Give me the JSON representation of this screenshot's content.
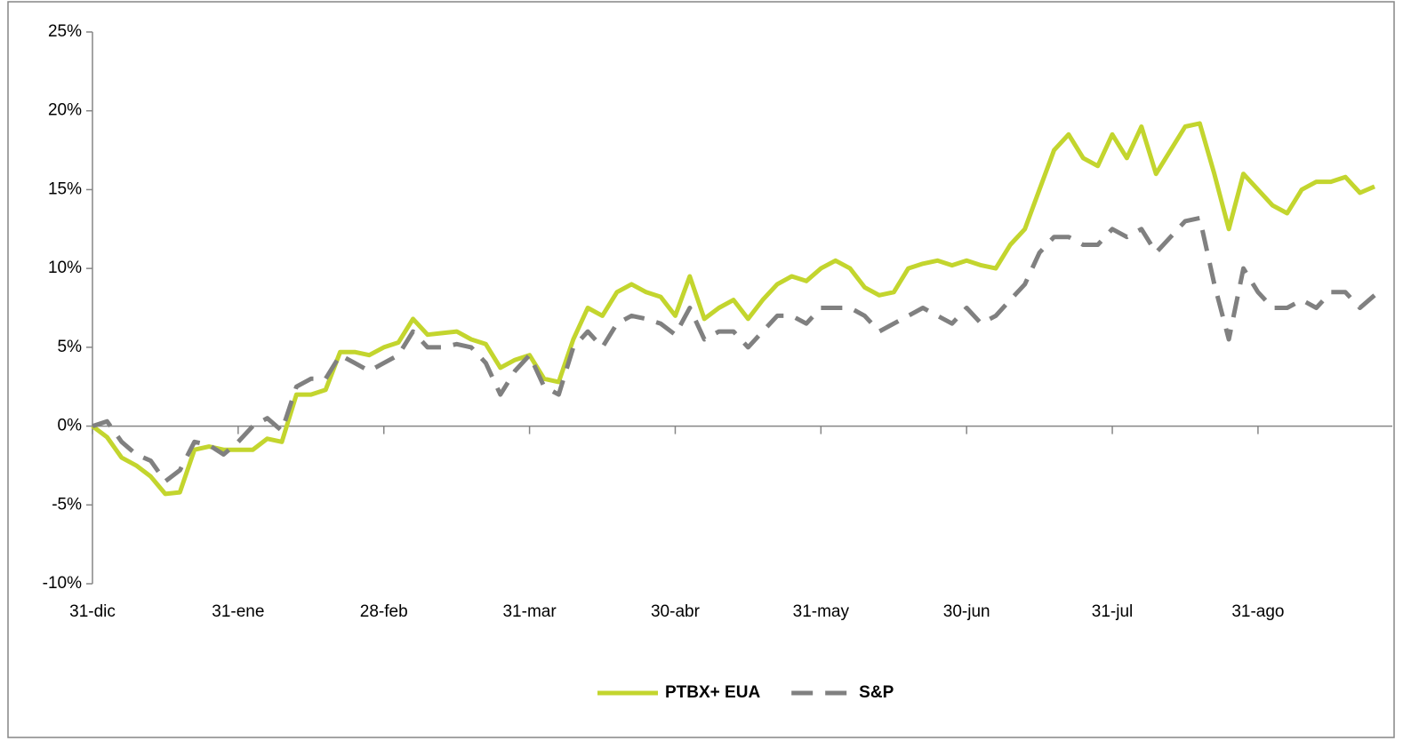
{
  "chart_data": {
    "type": "line",
    "categories": [
      "31-dic",
      null,
      null,
      null,
      null,
      null,
      null,
      null,
      null,
      null,
      "31-ene",
      null,
      null,
      null,
      null,
      null,
      null,
      null,
      null,
      null,
      "28-feb",
      null,
      null,
      null,
      null,
      null,
      null,
      null,
      null,
      null,
      "31-mar",
      null,
      null,
      null,
      null,
      null,
      null,
      null,
      null,
      null,
      "30-abr",
      null,
      null,
      null,
      null,
      null,
      null,
      null,
      null,
      null,
      "31-may",
      null,
      null,
      null,
      null,
      null,
      null,
      null,
      null,
      null,
      "30-jun",
      null,
      null,
      null,
      null,
      null,
      null,
      null,
      null,
      null,
      "31-jul",
      null,
      null,
      null,
      null,
      null,
      null,
      null,
      null,
      null,
      "31-ago",
      null,
      null,
      null,
      null,
      null,
      null,
      null,
      null
    ],
    "series": [
      {
        "name": "PTBX+ EUA",
        "color": "#c3d52e",
        "dashed": false,
        "values": [
          0,
          -0.7,
          -2.0,
          -2.5,
          -3.2,
          -4.3,
          -4.2,
          -1.5,
          -1.3,
          -1.5,
          -1.5,
          -1.5,
          -0.8,
          -1.0,
          2.0,
          2.0,
          2.3,
          4.7,
          4.7,
          4.5,
          5.0,
          5.3,
          6.8,
          5.8,
          5.9,
          6.0,
          5.5,
          5.2,
          3.7,
          4.2,
          4.5,
          3.0,
          2.8,
          5.5,
          7.5,
          7.0,
          8.5,
          9.0,
          8.5,
          8.2,
          7.0,
          9.5,
          6.8,
          7.5,
          8.0,
          6.8,
          8.0,
          9.0,
          9.5,
          9.2,
          10.0,
          10.5,
          10.0,
          8.8,
          8.3,
          8.5,
          10.0,
          10.3,
          10.5,
          10.2,
          10.5,
          10.2,
          10.0,
          11.5,
          12.5,
          15.0,
          17.5,
          18.5,
          17.0,
          16.5,
          18.5,
          17.0,
          19.0,
          16.0,
          17.5,
          19.0,
          19.2,
          16.0,
          12.5,
          16.0,
          15.0,
          14.0,
          13.5,
          15.0,
          15.5,
          15.5,
          15.8,
          14.8,
          15.2
        ]
      },
      {
        "name": "S&P",
        "color": "#808080",
        "dashed": true,
        "values": [
          0,
          0.3,
          -1.0,
          -1.8,
          -2.2,
          -3.5,
          -2.8,
          -1.0,
          -1.2,
          -1.8,
          -1.0,
          0,
          0.5,
          -0.3,
          2.5,
          3.0,
          3.0,
          4.5,
          4.0,
          3.5,
          4.0,
          4.5,
          6.0,
          5.0,
          5.0,
          5.2,
          5.0,
          4.0,
          2.0,
          3.5,
          4.5,
          2.5,
          2.0,
          5.0,
          6.0,
          5.0,
          6.5,
          7.0,
          6.8,
          6.5,
          5.8,
          7.5,
          5.5,
          6.0,
          6.0,
          5.0,
          6.0,
          7.0,
          7.0,
          6.5,
          7.5,
          7.5,
          7.5,
          7.0,
          6.0,
          6.5,
          7.0,
          7.5,
          7.0,
          6.5,
          7.5,
          6.5,
          7.0,
          8.0,
          9.0,
          11.0,
          12.0,
          12.0,
          11.5,
          11.5,
          12.5,
          12.0,
          12.5,
          11.0,
          12.0,
          13.0,
          13.2,
          9.0,
          5.5,
          10.0,
          8.5,
          7.5,
          7.5,
          8.0,
          7.5,
          8.5,
          8.5,
          7.5,
          8.3
        ]
      }
    ],
    "ylim": [
      -10,
      25
    ],
    "yticks": [
      {
        "value": -10,
        "label": "-10%"
      },
      {
        "value": -5,
        "label": "-5%"
      },
      {
        "value": 0,
        "label": "0%"
      },
      {
        "value": 5,
        "label": "5%"
      },
      {
        "value": 10,
        "label": "10%"
      },
      {
        "value": 15,
        "label": "15%"
      },
      {
        "value": 20,
        "label": "20%"
      },
      {
        "value": 25,
        "label": "25%"
      }
    ],
    "legend": "bottom"
  }
}
